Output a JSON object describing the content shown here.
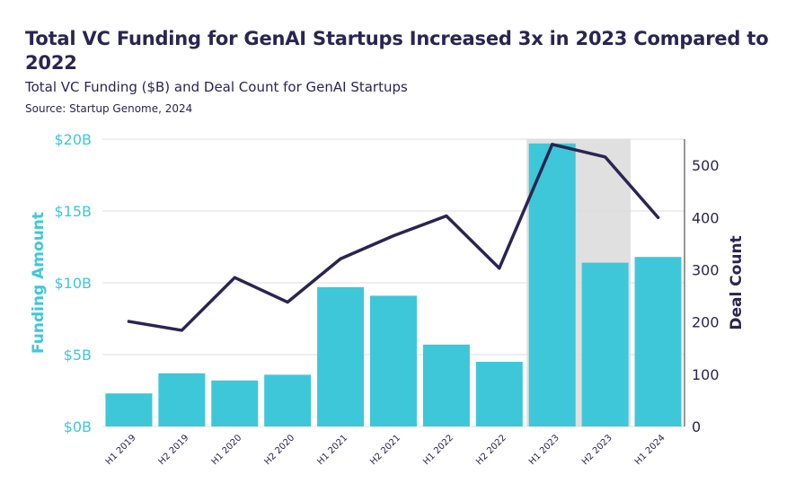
{
  "chart_data": {
    "type": "bar",
    "title": "Total VC Funding for GenAI Startups Increased 3x in 2023 Compared to 2022",
    "subtitle": "Total VC Funding ($B) and Deal Count for GenAI Startups",
    "source": "Source: Startup Genome, 2024",
    "categories": [
      "H1 2019",
      "H2 2019",
      "H1 2020",
      "H2 2020",
      "H1 2021",
      "H2 2021",
      "H1 2022",
      "H2 2022",
      "H1 2023",
      "H2 2023",
      "H1 2024"
    ],
    "series": [
      {
        "name": "Funding Amount",
        "type": "bar",
        "axis": "left",
        "color": "#3ec7d9",
        "values": [
          2.3,
          3.7,
          3.2,
          3.6,
          9.7,
          9.1,
          5.7,
          4.5,
          19.7,
          11.4,
          11.8
        ]
      },
      {
        "name": "Deal Count",
        "type": "line",
        "axis": "right",
        "color": "#2a2550",
        "values": [
          201,
          184,
          285,
          238,
          321,
          365,
          403,
          303,
          540,
          516,
          400
        ]
      }
    ],
    "ylabel_left": "Funding Amount",
    "ylabel_right": "Deal Count",
    "ylim_left": [
      0,
      20
    ],
    "ylim_right": [
      0,
      550
    ],
    "yticks_left": [
      0,
      5,
      10,
      15,
      20
    ],
    "yticks_left_labels": [
      "$0B",
      "$5B",
      "$10B",
      "$15B",
      "$20B"
    ],
    "yticks_right": [
      0,
      100,
      200,
      300,
      400,
      500
    ],
    "yticks_right_labels": [
      "0",
      "100",
      "200",
      "300",
      "400",
      "500"
    ],
    "highlight_categories": [
      "H1 2023",
      "H2 2023"
    ],
    "colors": {
      "highlight": "#e0e0e0",
      "grid": "#dddddd"
    }
  }
}
